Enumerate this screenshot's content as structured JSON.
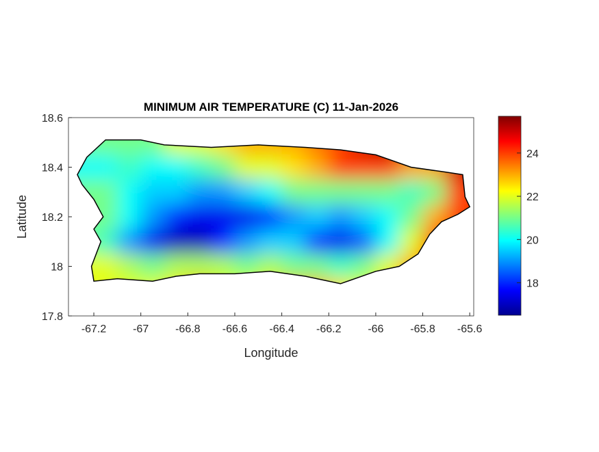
{
  "chart_data": {
    "type": "heatmap",
    "title": "MINIMUM AIR TEMPERATURE (C) 11-Jan-2026",
    "xlabel": "Longitude",
    "ylabel": "Latitude",
    "xlim": [
      -67.308,
      -65.583
    ],
    "ylim": [
      17.8,
      18.6
    ],
    "xticks": [
      -67.2,
      -67,
      -66.8,
      -66.6,
      -66.4,
      -66.2,
      -66,
      -65.8,
      -65.6
    ],
    "xtick_labels": [
      "-67.2",
      "-67",
      "-66.8",
      "-66.6",
      "-66.4",
      "-66.2",
      "-66",
      "-65.8",
      "-65.6"
    ],
    "yticks": [
      17.8,
      18,
      18.2,
      18.4,
      18.6
    ],
    "ytick_labels": [
      "17.8",
      "18",
      "18.2",
      "18.4",
      "18.6"
    ],
    "colormap": "jet",
    "clim": [
      16.5,
      25.7
    ],
    "colorbar_ticks": [
      18,
      20,
      22,
      24
    ],
    "colorbar_tick_labels": [
      "18",
      "20",
      "22",
      "24"
    ],
    "grid": false,
    "grid_lon": [
      -67.25,
      -67.15,
      -67.05,
      -66.95,
      -66.85,
      -66.75,
      -66.65,
      -66.55,
      -66.45,
      -66.35,
      -66.25,
      -66.15,
      -66.05,
      -65.95,
      -65.85,
      -65.75,
      -65.65
    ],
    "grid_lat": [
      18.5,
      18.4,
      18.3,
      18.2,
      18.1,
      18.0,
      17.9
    ],
    "values": [
      [
        21,
        21,
        21,
        21,
        22,
        22,
        22.5,
        23,
        23,
        23,
        23.5,
        24,
        25,
        25.5,
        25,
        24.5,
        25
      ],
      [
        20,
        20,
        20.5,
        20,
        20,
        20.5,
        21,
        22,
        22,
        22.5,
        23,
        24,
        24,
        24,
        23,
        23,
        25
      ],
      [
        21,
        21,
        20,
        19.5,
        19.5,
        19,
        19,
        19.5,
        20,
        21,
        21,
        21,
        21,
        21,
        20.5,
        21,
        24
      ],
      [
        21,
        21,
        20,
        19,
        18,
        17.5,
        17.5,
        17.5,
        18,
        19,
        19.5,
        19,
        19.5,
        20,
        21,
        23,
        24
      ],
      [
        21,
        20.5,
        19,
        17.5,
        17,
        17,
        18,
        19,
        19.5,
        19.5,
        18,
        17.5,
        18.5,
        20,
        22,
        24,
        24
      ],
      [
        22,
        22,
        21.5,
        21,
        21.5,
        21.5,
        21.5,
        21,
        21.5,
        21,
        21,
        20.5,
        21,
        22,
        23,
        23,
        23
      ],
      [
        22,
        22,
        22,
        22,
        22.5,
        23,
        22,
        22,
        22.5,
        23,
        23,
        22.5,
        22,
        22.5,
        23,
        23,
        23
      ]
    ],
    "outline": [
      [
        -67.27,
        18.37
      ],
      [
        -67.23,
        18.44
      ],
      [
        -67.15,
        18.51
      ],
      [
        -67.0,
        18.51
      ],
      [
        -66.9,
        18.49
      ],
      [
        -66.7,
        18.48
      ],
      [
        -66.5,
        18.49
      ],
      [
        -66.3,
        18.48
      ],
      [
        -66.15,
        18.47
      ],
      [
        -66.0,
        18.45
      ],
      [
        -65.85,
        18.4
      ],
      [
        -65.7,
        18.38
      ],
      [
        -65.63,
        18.37
      ],
      [
        -65.62,
        18.28
      ],
      [
        -65.6,
        18.24
      ],
      [
        -65.65,
        18.21
      ],
      [
        -65.72,
        18.18
      ],
      [
        -65.77,
        18.13
      ],
      [
        -65.82,
        18.05
      ],
      [
        -65.9,
        18.0
      ],
      [
        -66.0,
        17.98
      ],
      [
        -66.15,
        17.93
      ],
      [
        -66.3,
        17.96
      ],
      [
        -66.45,
        17.98
      ],
      [
        -66.6,
        17.97
      ],
      [
        -66.75,
        17.97
      ],
      [
        -66.85,
        17.96
      ],
      [
        -66.95,
        17.94
      ],
      [
        -67.1,
        17.95
      ],
      [
        -67.2,
        17.94
      ],
      [
        -67.21,
        18.0
      ],
      [
        -67.17,
        18.1
      ],
      [
        -67.2,
        18.15
      ],
      [
        -67.16,
        18.2
      ],
      [
        -67.2,
        18.27
      ],
      [
        -67.25,
        18.33
      ]
    ]
  }
}
